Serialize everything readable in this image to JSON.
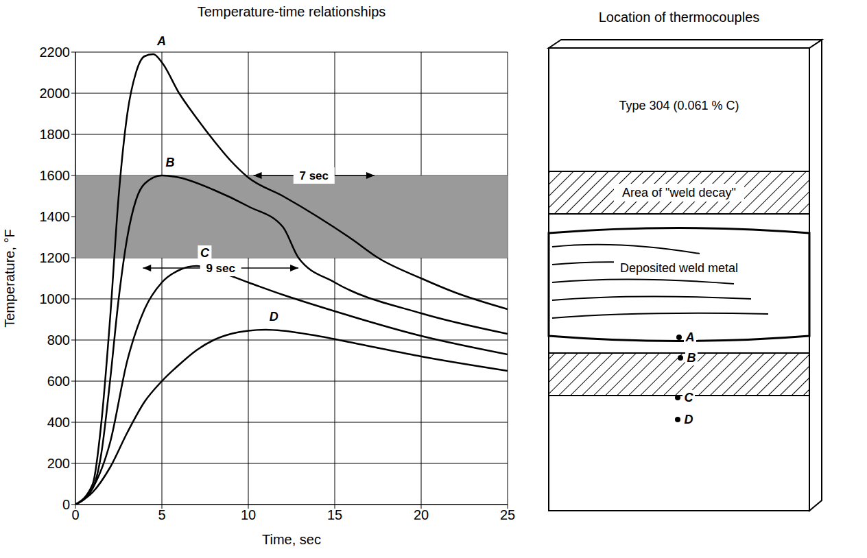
{
  "chart_data": {
    "type": "line",
    "title": "Temperature-time relationships",
    "x_label": "Time, sec",
    "y_label": "Temperature, °F",
    "xlim": [
      0,
      25
    ],
    "xticks": [
      0,
      5,
      10,
      15,
      20,
      25
    ],
    "ylim": [
      0,
      2200
    ],
    "yticks": [
      0,
      200,
      400,
      600,
      800,
      1000,
      1200,
      1400,
      1600,
      1800,
      2000,
      2200
    ],
    "grid": true,
    "shaded_band": [
      1200,
      1600
    ],
    "series": [
      {
        "name": "A",
        "color": "#000000",
        "x": [
          0,
          1,
          1.5,
          2,
          2.5,
          3,
          3.5,
          4,
          4.5,
          5,
          6,
          7,
          8,
          9,
          10,
          12,
          14,
          16,
          17.5,
          20,
          22,
          25
        ],
        "values": [
          0,
          100,
          400,
          900,
          1500,
          1900,
          2100,
          2180,
          2190,
          2150,
          2000,
          1880,
          1770,
          1670,
          1590,
          1500,
          1400,
          1290,
          1200,
          1100,
          1030,
          950
        ]
      },
      {
        "name": "B",
        "color": "#000000",
        "x": [
          0,
          1,
          1.5,
          2,
          2.5,
          3,
          3.5,
          4,
          5,
          6,
          8,
          10,
          12,
          12.9,
          15,
          20,
          25
        ],
        "values": [
          0,
          80,
          250,
          600,
          1000,
          1300,
          1480,
          1560,
          1600,
          1590,
          1530,
          1450,
          1350,
          1200,
          1080,
          930,
          830
        ]
      },
      {
        "name": "C",
        "color": "#000000",
        "x": [
          0,
          1,
          2,
          3,
          4,
          5,
          6,
          7,
          8,
          10,
          12,
          15,
          20,
          25
        ],
        "values": [
          0,
          80,
          300,
          700,
          950,
          1080,
          1140,
          1160,
          1140,
          1080,
          1020,
          940,
          820,
          730
        ]
      },
      {
        "name": "D",
        "color": "#000000",
        "x": [
          0,
          1,
          2,
          3,
          4,
          5,
          6,
          7,
          8,
          9,
          10,
          11,
          12,
          14,
          17,
          20,
          25
        ],
        "values": [
          0,
          60,
          180,
          350,
          500,
          600,
          680,
          750,
          800,
          830,
          845,
          850,
          845,
          820,
          770,
          720,
          650
        ]
      }
    ],
    "annotations": [
      {
        "text": "7 sec",
        "x": [
          10.3,
          17.3
        ],
        "y": 1600
      },
      {
        "text": "9 sec",
        "x": [
          3.9,
          12.9
        ],
        "y": 1150
      }
    ]
  },
  "diagram": {
    "title": "Location of thermocouples",
    "base_metal": "Type 304 (0.061 % C)",
    "decay_label": "Area of \"weld decay\"",
    "weld_label": "Deposited weld metal",
    "thermocouples": [
      "A",
      "B",
      "C",
      "D"
    ]
  }
}
